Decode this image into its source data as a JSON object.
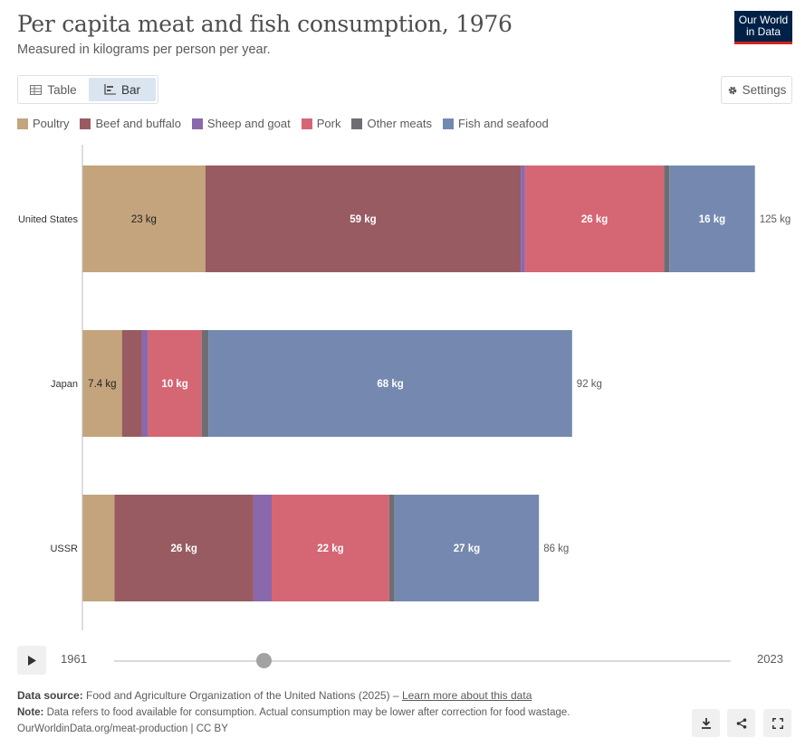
{
  "header": {
    "title": "Per capita meat and fish consumption, 1976",
    "subtitle": "Measured in kilograms per person per year.",
    "logo_line1": "Our World",
    "logo_line2": "in Data"
  },
  "tabs": [
    {
      "label": "Table",
      "icon": "table-icon"
    },
    {
      "label": "Bar",
      "icon": "bar-chart-icon"
    }
  ],
  "settings_label": "Settings",
  "legend": [
    {
      "name": "Poultry",
      "color": "#c4a47c"
    },
    {
      "name": "Beef and buffalo",
      "color": "#985b61"
    },
    {
      "name": "Sheep and goat",
      "color": "#8a68ac"
    },
    {
      "name": "Pork",
      "color": "#d56674"
    },
    {
      "name": "Other meats",
      "color": "#6d6e71"
    },
    {
      "name": "Fish and seafood",
      "color": "#7589b0"
    }
  ],
  "chart_data": {
    "type": "bar",
    "orientation": "horizontal",
    "stacked": true,
    "categories": [
      "United States",
      "Japan",
      "USSR"
    ],
    "unit": "kg",
    "series": [
      {
        "name": "Poultry",
        "color": "#c4a47c",
        "values": [
          23,
          7.4,
          6
        ],
        "labels": [
          "23 kg",
          "7.4 kg",
          ""
        ]
      },
      {
        "name": "Beef and buffalo",
        "color": "#985b61",
        "values": [
          59,
          3.7,
          26
        ],
        "labels": [
          "59 kg",
          "",
          "26 kg"
        ]
      },
      {
        "name": "Sheep and goat",
        "color": "#8a68ac",
        "values": [
          0.8,
          1.2,
          3.4
        ],
        "labels": [
          "",
          "",
          ""
        ]
      },
      {
        "name": "Pork",
        "color": "#d56674",
        "values": [
          26,
          10,
          22
        ],
        "labels": [
          "26 kg",
          "10 kg",
          "22 kg"
        ]
      },
      {
        "name": "Other meats",
        "color": "#6d6e71",
        "values": [
          1,
          1.3,
          1
        ],
        "labels": [
          "",
          "",
          ""
        ]
      },
      {
        "name": "Fish and seafood",
        "color": "#7589b0",
        "values": [
          16,
          68,
          27
        ],
        "labels": [
          "16 kg",
          "68 kg",
          "27 kg"
        ]
      }
    ],
    "totals": [
      "125 kg",
      "92 kg",
      "86 kg"
    ],
    "xlim": [
      0,
      125
    ],
    "grid": false
  },
  "timeline": {
    "start_year": "1961",
    "end_year": "2023",
    "selected_year": 1976
  },
  "footer": {
    "source_label": "Data source:",
    "source_text": "Food and Agriculture Organization of the United Nations (2025) –",
    "source_link": "Learn more about this data",
    "note_label": "Note:",
    "note_text": "Data refers to food available for consumption. Actual consumption may be lower after correction for food wastage.",
    "url_text": "OurWorldinData.org/meat-production | CC BY"
  }
}
